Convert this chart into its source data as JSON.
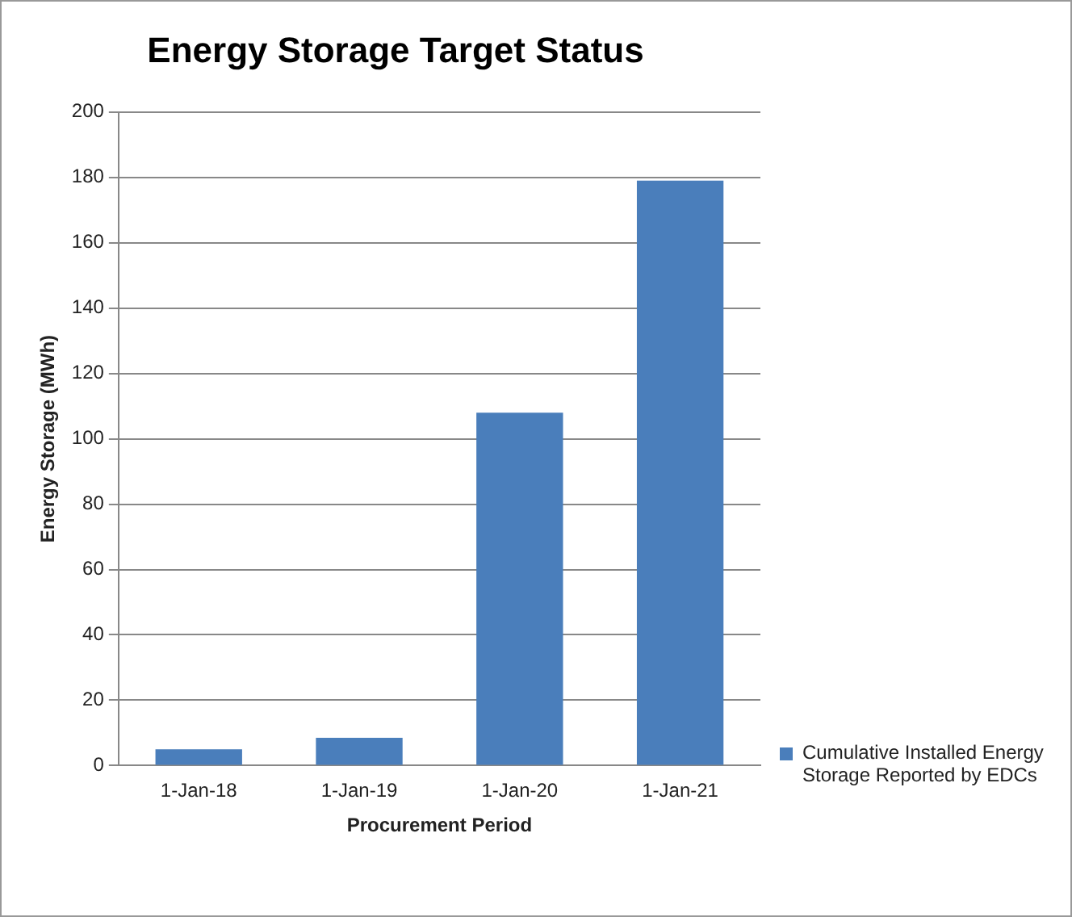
{
  "chart_data": {
    "type": "bar",
    "title": "Energy Storage Target Status",
    "xlabel": "Procurement Period",
    "ylabel": "Energy Storage (MWh)",
    "categories": [
      "1-Jan-18",
      "1-Jan-19",
      "1-Jan-20",
      "1-Jan-21"
    ],
    "series": [
      {
        "name": "Cumulative Installed Energy Storage Reported by EDCs",
        "color": "#4a7ebb",
        "values": [
          5,
          8.5,
          108,
          179
        ]
      }
    ],
    "ylim": [
      0,
      200
    ],
    "yticks": [
      0,
      20,
      40,
      60,
      80,
      100,
      120,
      140,
      160,
      180,
      200
    ],
    "grid": "y",
    "legend": "right"
  }
}
